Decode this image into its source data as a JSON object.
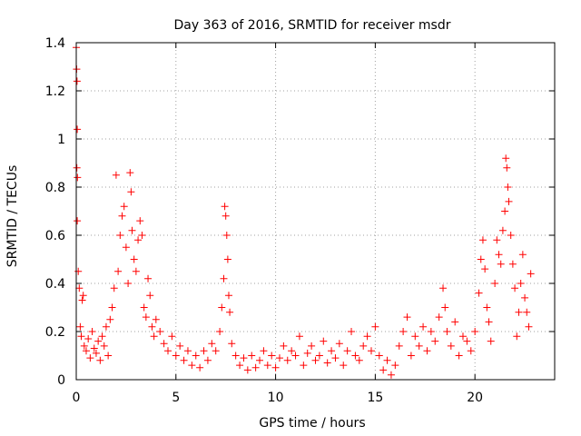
{
  "chart_data": {
    "type": "scatter",
    "title": "Day 363 of 2016, SRMTID for receiver msdr",
    "xlabel": "GPS time / hours",
    "ylabel": "SRMTID / TECUs",
    "xlim": [
      0,
      24
    ],
    "ylim": [
      0,
      1.4
    ],
    "xticks": [
      0,
      5,
      10,
      15,
      20
    ],
    "yticks": [
      0,
      0.2,
      0.4,
      0.6,
      0.8,
      1,
      1.2,
      1.4
    ],
    "xtick_labels": [
      "0",
      "5",
      "10",
      "15",
      "20"
    ],
    "ytick_labels": [
      "0",
      "0.2",
      "0.4",
      "0.6",
      "0.8",
      "1",
      "1.2",
      "1.4"
    ],
    "grid": true,
    "marker": "+",
    "color": "#ff0000",
    "series": [
      {
        "name": "SRMTID",
        "points": [
          [
            0.0,
            1.38
          ],
          [
            0.02,
            1.29
          ],
          [
            0.04,
            1.24
          ],
          [
            0.05,
            1.04
          ],
          [
            0.03,
            0.88
          ],
          [
            0.06,
            0.84
          ],
          [
            0.05,
            0.66
          ],
          [
            0.1,
            0.45
          ],
          [
            0.15,
            0.38
          ],
          [
            0.2,
            0.22
          ],
          [
            0.25,
            0.18
          ],
          [
            0.3,
            0.33
          ],
          [
            0.35,
            0.35
          ],
          [
            0.4,
            0.14
          ],
          [
            0.5,
            0.12
          ],
          [
            0.6,
            0.17
          ],
          [
            0.7,
            0.09
          ],
          [
            0.8,
            0.2
          ],
          [
            0.9,
            0.13
          ],
          [
            1.0,
            0.11
          ],
          [
            1.1,
            0.16
          ],
          [
            1.2,
            0.08
          ],
          [
            1.3,
            0.18
          ],
          [
            1.4,
            0.14
          ],
          [
            1.5,
            0.22
          ],
          [
            1.6,
            0.1
          ],
          [
            1.7,
            0.25
          ],
          [
            1.8,
            0.3
          ],
          [
            1.9,
            0.38
          ],
          [
            2.0,
            0.85
          ],
          [
            2.1,
            0.45
          ],
          [
            2.2,
            0.6
          ],
          [
            2.3,
            0.68
          ],
          [
            2.4,
            0.72
          ],
          [
            2.5,
            0.55
          ],
          [
            2.6,
            0.4
          ],
          [
            2.7,
            0.86
          ],
          [
            2.75,
            0.78
          ],
          [
            2.8,
            0.62
          ],
          [
            2.9,
            0.5
          ],
          [
            3.0,
            0.45
          ],
          [
            3.1,
            0.58
          ],
          [
            3.2,
            0.66
          ],
          [
            3.3,
            0.6
          ],
          [
            3.4,
            0.3
          ],
          [
            3.5,
            0.26
          ],
          [
            3.6,
            0.42
          ],
          [
            3.7,
            0.35
          ],
          [
            3.8,
            0.22
          ],
          [
            3.9,
            0.18
          ],
          [
            4.0,
            0.25
          ],
          [
            4.2,
            0.2
          ],
          [
            4.4,
            0.15
          ],
          [
            4.6,
            0.12
          ],
          [
            4.8,
            0.18
          ],
          [
            5.0,
            0.1
          ],
          [
            5.2,
            0.14
          ],
          [
            5.4,
            0.08
          ],
          [
            5.6,
            0.12
          ],
          [
            5.8,
            0.06
          ],
          [
            6.0,
            0.1
          ],
          [
            6.2,
            0.05
          ],
          [
            6.4,
            0.12
          ],
          [
            6.6,
            0.08
          ],
          [
            6.8,
            0.15
          ],
          [
            7.0,
            0.12
          ],
          [
            7.2,
            0.2
          ],
          [
            7.3,
            0.3
          ],
          [
            7.4,
            0.42
          ],
          [
            7.45,
            0.72
          ],
          [
            7.5,
            0.68
          ],
          [
            7.55,
            0.6
          ],
          [
            7.6,
            0.5
          ],
          [
            7.65,
            0.35
          ],
          [
            7.7,
            0.28
          ],
          [
            7.8,
            0.15
          ],
          [
            8.0,
            0.1
          ],
          [
            8.2,
            0.06
          ],
          [
            8.4,
            0.09
          ],
          [
            8.6,
            0.04
          ],
          [
            8.8,
            0.1
          ],
          [
            9.0,
            0.05
          ],
          [
            9.2,
            0.08
          ],
          [
            9.4,
            0.12
          ],
          [
            9.6,
            0.06
          ],
          [
            9.8,
            0.1
          ],
          [
            10.0,
            0.05
          ],
          [
            10.2,
            0.09
          ],
          [
            10.4,
            0.14
          ],
          [
            10.6,
            0.08
          ],
          [
            10.8,
            0.12
          ],
          [
            11.0,
            0.1
          ],
          [
            11.2,
            0.18
          ],
          [
            11.4,
            0.06
          ],
          [
            11.6,
            0.11
          ],
          [
            11.8,
            0.14
          ],
          [
            12.0,
            0.08
          ],
          [
            12.2,
            0.1
          ],
          [
            12.4,
            0.16
          ],
          [
            12.6,
            0.07
          ],
          [
            12.8,
            0.12
          ],
          [
            13.0,
            0.09
          ],
          [
            13.2,
            0.15
          ],
          [
            13.4,
            0.06
          ],
          [
            13.6,
            0.12
          ],
          [
            13.8,
            0.2
          ],
          [
            14.0,
            0.1
          ],
          [
            14.2,
            0.08
          ],
          [
            14.4,
            0.14
          ],
          [
            14.6,
            0.18
          ],
          [
            14.8,
            0.12
          ],
          [
            15.0,
            0.22
          ],
          [
            15.2,
            0.1
          ],
          [
            15.4,
            0.04
          ],
          [
            15.6,
            0.08
          ],
          [
            15.8,
            0.02
          ],
          [
            16.0,
            0.06
          ],
          [
            16.2,
            0.14
          ],
          [
            16.4,
            0.2
          ],
          [
            16.6,
            0.26
          ],
          [
            16.8,
            0.1
          ],
          [
            17.0,
            0.18
          ],
          [
            17.2,
            0.14
          ],
          [
            17.4,
            0.22
          ],
          [
            17.6,
            0.12
          ],
          [
            17.8,
            0.2
          ],
          [
            18.0,
            0.16
          ],
          [
            18.2,
            0.26
          ],
          [
            18.4,
            0.38
          ],
          [
            18.5,
            0.3
          ],
          [
            18.6,
            0.2
          ],
          [
            18.8,
            0.14
          ],
          [
            19.0,
            0.24
          ],
          [
            19.2,
            0.1
          ],
          [
            19.4,
            0.18
          ],
          [
            19.6,
            0.16
          ],
          [
            19.8,
            0.12
          ],
          [
            20.0,
            0.2
          ],
          [
            20.2,
            0.36
          ],
          [
            20.3,
            0.5
          ],
          [
            20.4,
            0.58
          ],
          [
            20.5,
            0.46
          ],
          [
            20.6,
            0.3
          ],
          [
            20.7,
            0.24
          ],
          [
            20.8,
            0.16
          ],
          [
            21.0,
            0.4
          ],
          [
            21.1,
            0.58
          ],
          [
            21.2,
            0.52
          ],
          [
            21.3,
            0.48
          ],
          [
            21.4,
            0.62
          ],
          [
            21.5,
            0.7
          ],
          [
            21.55,
            0.92
          ],
          [
            21.6,
            0.88
          ],
          [
            21.65,
            0.8
          ],
          [
            21.7,
            0.74
          ],
          [
            21.8,
            0.6
          ],
          [
            21.9,
            0.48
          ],
          [
            22.0,
            0.38
          ],
          [
            22.1,
            0.18
          ],
          [
            22.2,
            0.28
          ],
          [
            22.3,
            0.4
          ],
          [
            22.4,
            0.52
          ],
          [
            22.5,
            0.34
          ],
          [
            22.6,
            0.28
          ],
          [
            22.7,
            0.22
          ],
          [
            22.8,
            0.44
          ]
        ]
      }
    ]
  }
}
